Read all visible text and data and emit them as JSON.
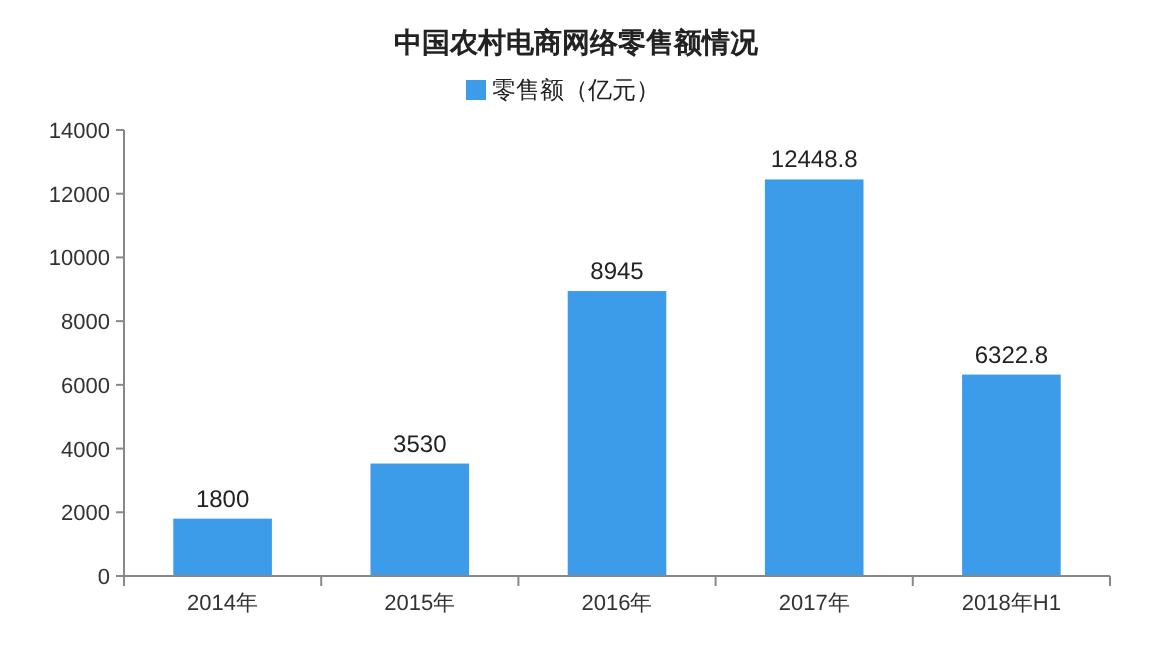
{
  "chart_data": {
    "type": "bar",
    "title": "中国农村电商网络零售额情况",
    "categories": [
      "2014年",
      "2015年",
      "2016年",
      "2017年",
      "2018年H1"
    ],
    "series": [
      {
        "name": "零售额（亿元）",
        "color": "#3c9cea",
        "values": [
          1800,
          3530,
          8945,
          12448.8,
          6322.8
        ]
      }
    ],
    "ylim": [
      0,
      14000
    ],
    "yticks": [
      0,
      2000,
      4000,
      6000,
      8000,
      10000,
      12000,
      14000
    ],
    "data_labels": true,
    "legend": "top"
  }
}
